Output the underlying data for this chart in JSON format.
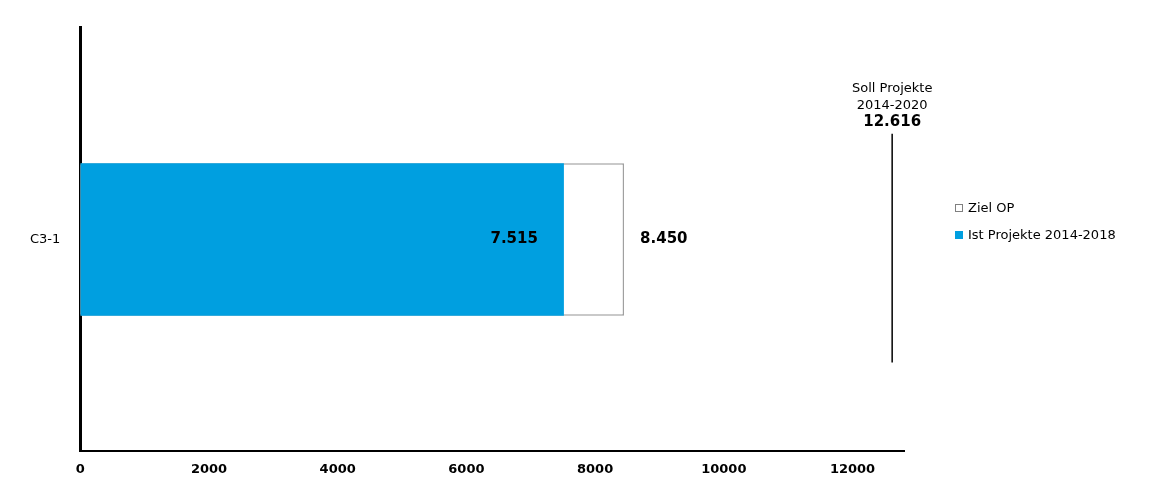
{
  "chart_data": {
    "type": "bar",
    "orientation": "horizontal",
    "categories": [
      "C3-1"
    ],
    "series": [
      {
        "name": "Ziel OP",
        "color": "#ffffff",
        "values": [
          8450
        ],
        "value_labels": [
          "8.450"
        ]
      },
      {
        "name": "Ist Projekte 2014-2018",
        "color": "#009fe0",
        "values": [
          7515
        ],
        "value_labels": [
          "7.515"
        ]
      }
    ],
    "xlim": [
      0,
      12800
    ],
    "xticks": [
      0,
      2000,
      4000,
      6000,
      8000,
      10000,
      12000
    ],
    "ref_lines": [
      {
        "axis": "x",
        "value": 12616,
        "label": "Soll Projekte\n2014-2020\n12.616"
      }
    ],
    "grid": false,
    "legend": "right"
  }
}
